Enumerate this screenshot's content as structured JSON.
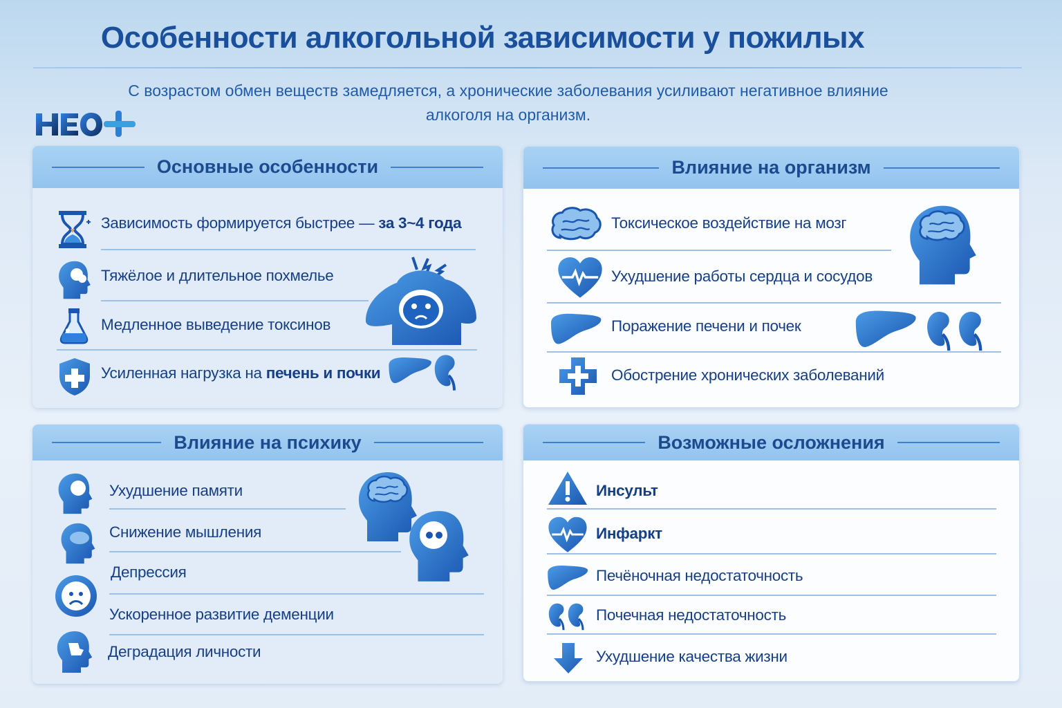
{
  "header": {
    "title": "Особенности алкогольной зависимости у пожилых",
    "subtitle_line1": "С возрастом обмен веществ замедляется, а хронические заболевания усиливают негативное влияние",
    "subtitle_line2": "алкоголя на организм.",
    "logo_text": "НЕО+"
  },
  "colors": {
    "primary": "#1a4f9c",
    "icon": "#1e63c0",
    "header_band": "#9cc8f0",
    "text": "#163f86"
  },
  "panels": {
    "main_features": {
      "title": "Основные особенности",
      "items": [
        {
          "text": "Зависимость формируется быстрее — ",
          "bold": "за 3~4 года",
          "icon": "hourglass-icon"
        },
        {
          "text": "Тяжёлое и длительное похмелье",
          "icon": "head-icon"
        },
        {
          "text": "Медленное выведение токсинов",
          "icon": "flask-icon"
        },
        {
          "text": "Усиленная нагрузка на ",
          "bold": "печень и почки",
          "icon": "shield-cross-icon"
        }
      ]
    },
    "body_effects": {
      "title": "Влияние на организм",
      "items": [
        {
          "text": "Токсическое воздействие на мозг",
          "icon": "brain-icon"
        },
        {
          "text": "Ухудшение работы сердца и сосудов",
          "icon": "heart-pulse-icon"
        },
        {
          "text": "Поражение печени и почек",
          "icon": "liver-icon"
        },
        {
          "text": "Обострение хронических заболеваний",
          "icon": "medical-cross-icon"
        }
      ]
    },
    "psyche_effects": {
      "title": "Влияние на психику",
      "items": [
        {
          "text": "Ухудшение памяти",
          "icon": "head-memory-icon"
        },
        {
          "text": "Снижение мышления",
          "icon": "head-thinking-icon"
        },
        {
          "text": "Депрессия",
          "icon": "sad-face-icon"
        },
        {
          "text": "Ускоренное развитие деменции",
          "icon": "sad-face-icon"
        },
        {
          "text": "Деградация личности",
          "icon": "head-puzzle-icon"
        }
      ]
    },
    "complications": {
      "title": "Возможные осложнения",
      "items": [
        {
          "text": "Инсульт",
          "icon": "warning-icon",
          "bold": true
        },
        {
          "text": "Инфаркт",
          "icon": "heart-pulse-icon",
          "bold": true
        },
        {
          "text": "Печёночная недостаточность",
          "icon": "liver-icon"
        },
        {
          "text": "Почечная недостаточность",
          "icon": "kidneys-icon"
        },
        {
          "text": "Ухудшение качества жизни",
          "icon": "arrow-down-icon"
        }
      ]
    }
  }
}
